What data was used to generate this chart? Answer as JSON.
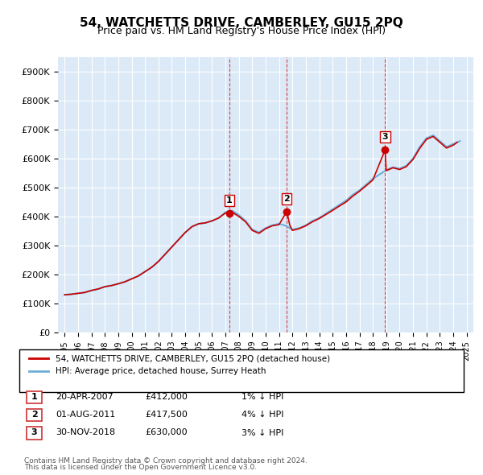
{
  "title": "54, WATCHETTS DRIVE, CAMBERLEY, GU15 2PQ",
  "subtitle": "Price paid vs. HM Land Registry's House Price Index (HPI)",
  "ylabel": "",
  "ylim": [
    0,
    950000
  ],
  "yticks": [
    0,
    100000,
    200000,
    300000,
    400000,
    500000,
    600000,
    700000,
    800000,
    900000
  ],
  "ytick_labels": [
    "£0",
    "£100K",
    "£200K",
    "£300K",
    "£400K",
    "£500K",
    "£600K",
    "£700K",
    "£800K",
    "£900K"
  ],
  "background_color": "#ffffff",
  "plot_bg_color": "#dce9f7",
  "grid_color": "#ffffff",
  "transactions": [
    {
      "label": "1",
      "date_num": 2007.3,
      "price": 412000,
      "color": "#cc0000"
    },
    {
      "label": "2",
      "date_num": 2011.58,
      "price": 417500,
      "color": "#cc0000"
    },
    {
      "label": "3",
      "date_num": 2018.92,
      "price": 630000,
      "color": "#cc0000"
    }
  ],
  "transaction_labels": [
    {
      "num": "1",
      "date": "20-APR-2007",
      "price": "£412,000",
      "hpi": "1% ↓ HPI"
    },
    {
      "num": "2",
      "date": "01-AUG-2011",
      "price": "£417,500",
      "hpi": "4% ↓ HPI"
    },
    {
      "num": "3",
      "date": "30-NOV-2018",
      "price": "£630,000",
      "hpi": "3% ↓ HPI"
    }
  ],
  "legend_line1": "54, WATCHETTS DRIVE, CAMBERLEY, GU15 2PQ (detached house)",
  "legend_line2": "HPI: Average price, detached house, Surrey Heath",
  "footer1": "Contains HM Land Registry data © Crown copyright and database right 2024.",
  "footer2": "This data is licensed under the Open Government Licence v3.0.",
  "red_line_color": "#cc0000",
  "blue_line_color": "#6baed6",
  "vline_color": "#cc0000",
  "vline_alpha": 0.5,
  "hpi_data": {
    "years": [
      1995,
      1995.5,
      1996,
      1996.5,
      1997,
      1997.5,
      1998,
      1998.5,
      1999,
      1999.5,
      2000,
      2000.5,
      2001,
      2001.5,
      2002,
      2002.5,
      2003,
      2003.5,
      2004,
      2004.5,
      2005,
      2005.5,
      2006,
      2006.5,
      2007,
      2007.5,
      2008,
      2008.5,
      2009,
      2009.5,
      2010,
      2010.5,
      2011,
      2011.5,
      2012,
      2012.5,
      2013,
      2013.5,
      2014,
      2014.5,
      2015,
      2015.5,
      2016,
      2016.5,
      2017,
      2017.5,
      2018,
      2018.5,
      2019,
      2019.5,
      2020,
      2020.5,
      2021,
      2021.5,
      2022,
      2022.5,
      2023,
      2023.5,
      2024,
      2024.5
    ],
    "values": [
      130000,
      132000,
      135000,
      138000,
      145000,
      150000,
      158000,
      162000,
      168000,
      175000,
      185000,
      195000,
      210000,
      225000,
      245000,
      270000,
      295000,
      320000,
      345000,
      365000,
      375000,
      378000,
      385000,
      395000,
      415000,
      420000,
      405000,
      385000,
      355000,
      345000,
      360000,
      370000,
      375000,
      368000,
      355000,
      360000,
      370000,
      385000,
      395000,
      410000,
      425000,
      440000,
      455000,
      475000,
      490000,
      510000,
      530000,
      545000,
      560000,
      570000,
      565000,
      575000,
      600000,
      640000,
      670000,
      680000,
      660000,
      640000,
      650000,
      660000
    ]
  },
  "red_line_data": {
    "years": [
      1995,
      1995.5,
      1996,
      1996.5,
      1997,
      1997.5,
      1998,
      1998.5,
      1999,
      1999.5,
      2000,
      2000.5,
      2001,
      2001.5,
      2002,
      2002.5,
      2003,
      2003.5,
      2004,
      2004.5,
      2005,
      2005.5,
      2006,
      2006.5,
      2007,
      2007.3,
      2007.5,
      2008,
      2008.5,
      2009,
      2009.5,
      2010,
      2010.5,
      2011,
      2011.58,
      2011.8,
      2012,
      2012.5,
      2013,
      2013.5,
      2014,
      2014.5,
      2015,
      2015.5,
      2016,
      2016.5,
      2017,
      2017.5,
      2018,
      2018.92,
      2019,
      2019.5,
      2020,
      2020.5,
      2021,
      2021.5,
      2022,
      2022.5,
      2023,
      2023.5,
      2024,
      2024.3
    ],
    "values": [
      130000,
      132000,
      135000,
      138000,
      145000,
      150000,
      158000,
      162000,
      168000,
      175000,
      185000,
      195000,
      210000,
      225000,
      245000,
      270000,
      295000,
      320000,
      345000,
      365000,
      375000,
      378000,
      385000,
      395000,
      412000,
      412000,
      415000,
      400000,
      382000,
      352000,
      342000,
      358000,
      368000,
      372000,
      417500,
      370000,
      352000,
      358000,
      368000,
      382000,
      393000,
      407000,
      421000,
      436000,
      450000,
      470000,
      487000,
      506000,
      526000,
      630000,
      558000,
      568000,
      562000,
      572000,
      597000,
      635000,
      666000,
      676000,
      656000,
      636000,
      646000,
      656000
    ]
  }
}
